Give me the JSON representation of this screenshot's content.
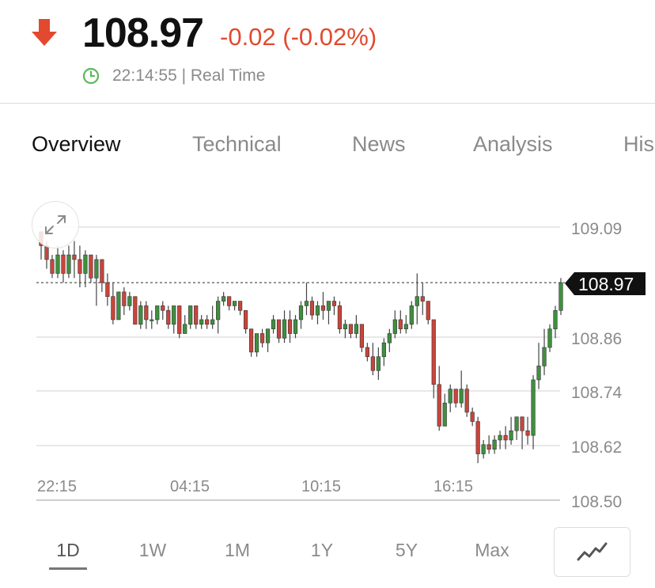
{
  "quote": {
    "price": "108.97",
    "change": "-0.02 (-0.02%)",
    "direction": "down",
    "time": "22:14:55 | Real Time"
  },
  "tabs": [
    {
      "label": "Overview",
      "active": true
    },
    {
      "label": "Technical",
      "active": false
    },
    {
      "label": "News",
      "active": false
    },
    {
      "label": "Analysis",
      "active": false
    },
    {
      "label": "His",
      "active": false
    }
  ],
  "ranges": [
    {
      "label": "1D",
      "active": true
    },
    {
      "label": "1W",
      "active": false
    },
    {
      "label": "1M",
      "active": false
    },
    {
      "label": "1Y",
      "active": false
    },
    {
      "label": "5Y",
      "active": false
    },
    {
      "label": "Max",
      "active": false
    }
  ],
  "icons": {
    "direction": "down-arrow-icon",
    "clock": "clock-icon",
    "expand": "expand-icon",
    "chart_type": "line-chart-icon"
  },
  "colors": {
    "down": "#e2492f",
    "up": "#2e7d32",
    "clock": "#5cb85c",
    "candle_up": "#3f8f3f",
    "candle_down": "#c9453b",
    "price_tag": "#111111"
  },
  "chart_data": {
    "type": "candlestick",
    "ylim": [
      108.5,
      109.09
    ],
    "y_ticks": [
      "109.09",
      "108.86",
      "108.74",
      "108.62",
      "108.50"
    ],
    "x_ticks": [
      "22:15",
      "04:15",
      "10:15",
      "16:15"
    ],
    "current_price": "108.97",
    "reference_line": 108.97,
    "grid": true,
    "candles": [
      [
        109.08,
        109.08,
        109.02,
        109.05
      ],
      [
        109.05,
        109.06,
        109.0,
        109.02
      ],
      [
        109.02,
        109.03,
        108.98,
        108.99
      ],
      [
        108.99,
        109.05,
        108.98,
        109.03
      ],
      [
        109.03,
        109.04,
        108.97,
        108.99
      ],
      [
        108.99,
        109.05,
        108.98,
        109.03
      ],
      [
        109.03,
        109.06,
        108.98,
        109.02
      ],
      [
        109.02,
        109.05,
        108.96,
        108.99
      ],
      [
        108.99,
        109.04,
        108.96,
        109.03
      ],
      [
        109.03,
        109.03,
        108.97,
        108.98
      ],
      [
        108.98,
        109.03,
        108.92,
        109.02
      ],
      [
        109.02,
        109.02,
        108.95,
        108.97
      ],
      [
        108.97,
        108.99,
        108.92,
        108.94
      ],
      [
        108.94,
        108.97,
        108.88,
        108.89
      ],
      [
        108.89,
        108.95,
        108.89,
        108.95
      ],
      [
        108.95,
        108.96,
        108.9,
        108.92
      ],
      [
        108.92,
        108.95,
        108.91,
        108.94
      ],
      [
        108.94,
        108.94,
        108.88,
        108.88
      ],
      [
        108.88,
        108.93,
        108.87,
        108.92
      ],
      [
        108.92,
        108.93,
        108.87,
        108.89
      ],
      [
        108.89,
        108.91,
        108.87,
        108.89
      ],
      [
        108.89,
        108.92,
        108.88,
        108.92
      ],
      [
        108.92,
        108.93,
        108.89,
        108.91
      ],
      [
        108.91,
        108.92,
        108.87,
        108.88
      ],
      [
        108.88,
        108.92,
        108.86,
        108.92
      ],
      [
        108.92,
        108.92,
        108.85,
        108.86
      ],
      [
        108.86,
        108.9,
        108.86,
        108.88
      ],
      [
        108.88,
        108.92,
        108.87,
        108.92
      ],
      [
        108.92,
        108.92,
        108.87,
        108.88
      ],
      [
        108.88,
        108.9,
        108.87,
        108.89
      ],
      [
        108.89,
        108.9,
        108.87,
        108.88
      ],
      [
        108.88,
        108.92,
        108.87,
        108.89
      ],
      [
        108.89,
        108.94,
        108.86,
        108.93
      ],
      [
        108.93,
        108.95,
        108.92,
        108.94
      ],
      [
        108.94,
        108.94,
        108.91,
        108.92
      ],
      [
        108.92,
        108.93,
        108.91,
        108.93
      ],
      [
        108.93,
        108.93,
        108.9,
        108.91
      ],
      [
        108.91,
        108.91,
        108.86,
        108.87
      ],
      [
        108.87,
        108.87,
        108.81,
        108.82
      ],
      [
        108.82,
        108.86,
        108.81,
        108.86
      ],
      [
        108.86,
        108.87,
        108.83,
        108.84
      ],
      [
        108.84,
        108.87,
        108.82,
        108.87
      ],
      [
        108.87,
        108.9,
        108.86,
        108.89
      ],
      [
        108.89,
        108.89,
        108.84,
        108.85
      ],
      [
        108.85,
        108.91,
        108.84,
        108.89
      ],
      [
        108.89,
        108.91,
        108.84,
        108.86
      ],
      [
        108.86,
        108.9,
        108.85,
        108.89
      ],
      [
        108.89,
        108.93,
        108.87,
        108.92
      ],
      [
        108.92,
        108.97,
        108.9,
        108.93
      ],
      [
        108.93,
        108.94,
        108.89,
        108.9
      ],
      [
        108.9,
        108.93,
        108.88,
        108.92
      ],
      [
        108.92,
        108.95,
        108.89,
        108.91
      ],
      [
        108.91,
        108.93,
        108.88,
        108.93
      ],
      [
        108.93,
        108.94,
        108.9,
        108.92
      ],
      [
        108.92,
        108.93,
        108.86,
        108.87
      ],
      [
        108.87,
        108.89,
        108.85,
        108.88
      ],
      [
        108.88,
        108.88,
        108.85,
        108.86
      ],
      [
        108.86,
        108.9,
        108.85,
        108.88
      ],
      [
        108.88,
        108.88,
        108.82,
        108.83
      ],
      [
        108.83,
        108.84,
        108.8,
        108.81
      ],
      [
        108.81,
        108.84,
        108.77,
        108.78
      ],
      [
        108.78,
        108.83,
        108.76,
        108.81
      ],
      [
        108.81,
        108.85,
        108.79,
        108.84
      ],
      [
        108.84,
        108.87,
        108.82,
        108.86
      ],
      [
        108.86,
        108.91,
        108.85,
        108.89
      ],
      [
        108.89,
        108.91,
        108.86,
        108.87
      ],
      [
        108.87,
        108.9,
        108.86,
        108.88
      ],
      [
        108.88,
        108.93,
        108.87,
        108.92
      ],
      [
        108.92,
        108.99,
        108.88,
        108.94
      ],
      [
        108.94,
        108.97,
        108.9,
        108.93
      ],
      [
        108.93,
        108.93,
        108.88,
        108.89
      ],
      [
        108.89,
        108.89,
        108.72,
        108.75
      ],
      [
        108.75,
        108.79,
        108.65,
        108.66
      ],
      [
        108.66,
        108.73,
        108.66,
        108.71
      ],
      [
        108.71,
        108.75,
        108.69,
        108.74
      ],
      [
        108.74,
        108.74,
        108.7,
        108.71
      ],
      [
        108.71,
        108.78,
        108.7,
        108.74
      ],
      [
        108.74,
        108.75,
        108.68,
        108.69
      ],
      [
        108.69,
        108.7,
        108.66,
        108.67
      ],
      [
        108.67,
        108.68,
        108.58,
        108.6
      ],
      [
        108.6,
        108.63,
        108.59,
        108.62
      ],
      [
        108.62,
        108.64,
        108.6,
        108.61
      ],
      [
        108.61,
        108.64,
        108.6,
        108.63
      ],
      [
        108.63,
        108.65,
        108.61,
        108.64
      ],
      [
        108.64,
        108.66,
        108.61,
        108.63
      ],
      [
        108.63,
        108.68,
        108.62,
        108.65
      ],
      [
        108.65,
        108.68,
        108.63,
        108.68
      ],
      [
        108.68,
        108.68,
        108.61,
        108.65
      ],
      [
        108.65,
        108.68,
        108.62,
        108.64
      ],
      [
        108.64,
        108.77,
        108.61,
        108.76
      ],
      [
        108.76,
        108.84,
        108.74,
        108.79
      ],
      [
        108.79,
        108.87,
        108.77,
        108.83
      ],
      [
        108.83,
        108.88,
        108.82,
        108.87
      ],
      [
        108.87,
        108.92,
        108.85,
        108.91
      ],
      [
        108.91,
        108.98,
        108.9,
        108.97
      ]
    ]
  }
}
